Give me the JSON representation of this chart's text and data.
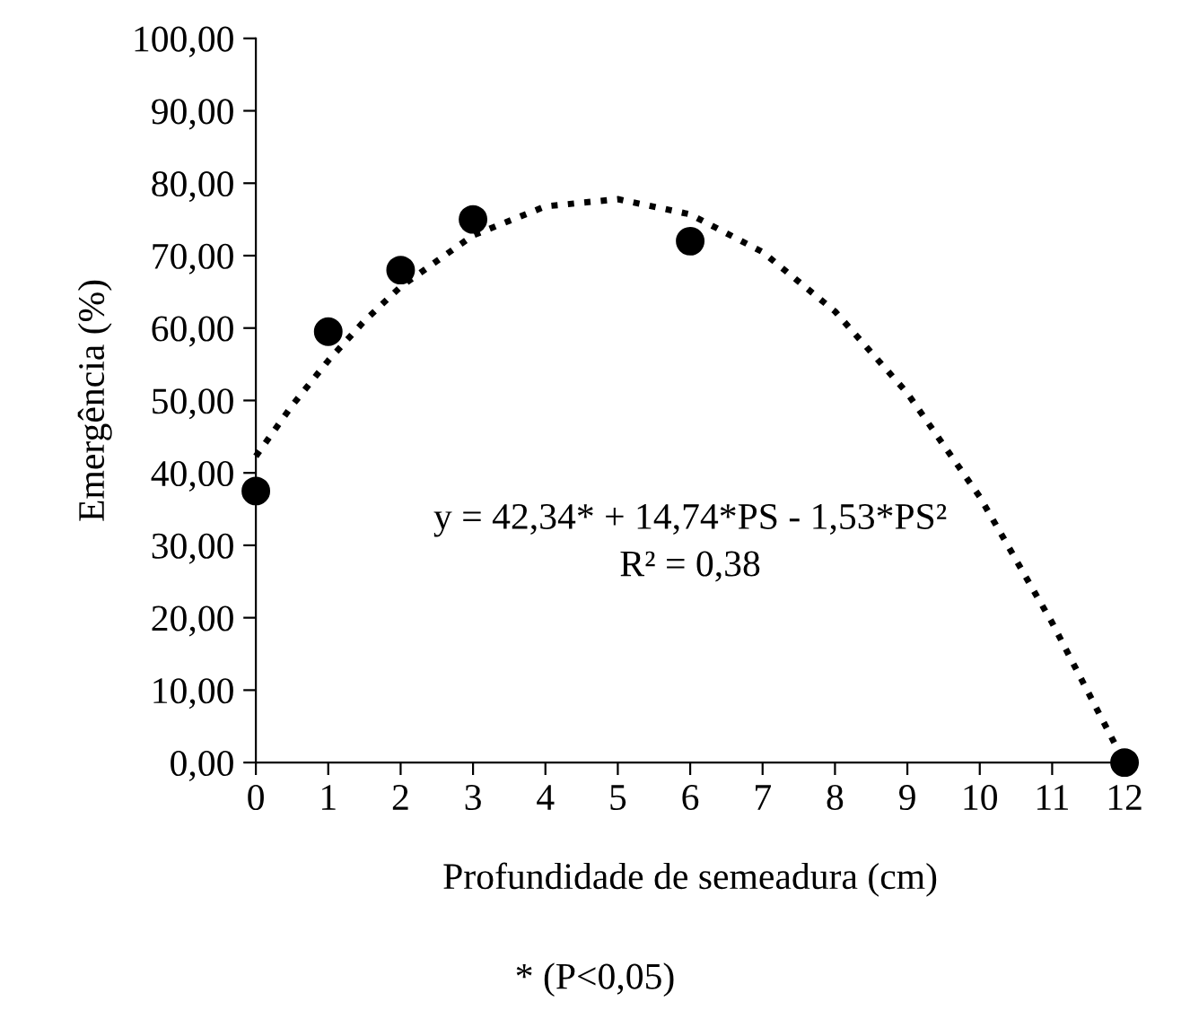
{
  "chart_data": {
    "type": "scatter",
    "xlabel": "Profundidade de semeadura (cm)",
    "ylabel": "Emergência (%)",
    "annotations": [
      "y = 42,34* + 14,74*PS - 1,53*PS²",
      "R² = 0,38",
      "* (P<0,05)"
    ],
    "series": [
      {
        "color": "#000000",
        "marker": "circle",
        "x": [
          0,
          1,
          2,
          3,
          6,
          12
        ],
        "values": [
          37.5,
          59.5,
          68.0,
          75.0,
          72.0,
          0.0
        ]
      },
      {
        "type": "line",
        "color": "#000000",
        "line_style": "dotted",
        "marker": "none",
        "x": [
          0,
          0.5,
          1,
          1.5,
          2,
          3,
          4,
          5,
          6,
          7,
          8,
          9,
          10,
          11,
          12
        ],
        "values": [
          42.3,
          49.3,
          55.5,
          61.0,
          65.7,
          72.8,
          76.8,
          77.8,
          75.7,
          70.5,
          62.3,
          51.0,
          36.7,
          19.3,
          0.0
        ]
      }
    ],
    "xlim": [
      0,
      12
    ],
    "xticks": [
      0,
      1,
      2,
      3,
      4,
      5,
      6,
      7,
      8,
      9,
      10,
      11,
      12
    ],
    "ylim": [
      0,
      100
    ],
    "yticks": [
      {
        "value": 0,
        "label": "0,00"
      },
      {
        "value": 10,
        "label": "10,00"
      },
      {
        "value": 20,
        "label": "20,00"
      },
      {
        "value": 30,
        "label": "30,00"
      },
      {
        "value": 40,
        "label": "40,00"
      },
      {
        "value": 50,
        "label": "50,00"
      },
      {
        "value": 60,
        "label": "60,00"
      },
      {
        "value": 70,
        "label": "70,00"
      },
      {
        "value": 80,
        "label": "80,00"
      },
      {
        "value": 90,
        "label": "90,00"
      },
      {
        "value": 100,
        "label": "100,00"
      }
    ],
    "grid": false,
    "legend": false
  }
}
